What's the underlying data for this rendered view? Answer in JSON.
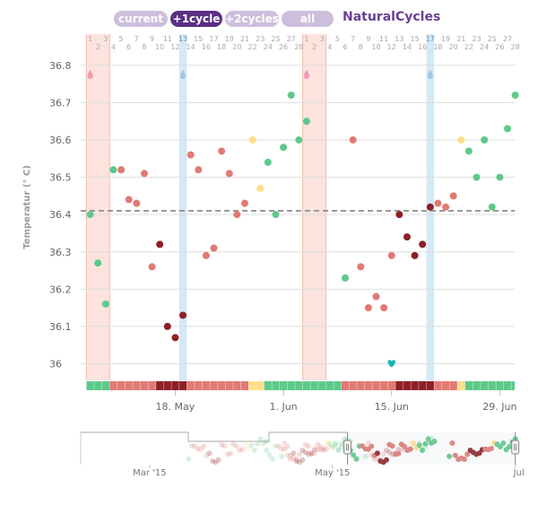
{
  "header": {
    "tabs": [
      {
        "label": "current",
        "active": false
      },
      {
        "label": "+1cycle",
        "active": true
      },
      {
        "label": "+2cycles",
        "active": false
      },
      {
        "label": "all",
        "active": false
      }
    ],
    "brand": "NaturalCycles"
  },
  "colors": {
    "green": "#5ec98a",
    "red": "#e07a73",
    "darkred": "#8e1f27",
    "yellow": "#ffe08a",
    "period_band": "#fde3de",
    "ovulation_band": "#d5e8f6",
    "marker_teal": "#1ab3b8",
    "marker_pink": "#f09bb3",
    "marker_blue": "#9ec9ea",
    "coverline": "#999999",
    "grid": "#dddddd"
  },
  "chart_data": [
    {
      "type": "scatter",
      "ylabel": "Temperatur (° C)",
      "ylim": [
        35.97,
        36.85
      ],
      "yticks": [
        36,
        36.1,
        36.2,
        36.3,
        36.4,
        36.5,
        36.6,
        36.7,
        36.8
      ],
      "x_range": [
        "2015-05-06",
        "2015-06-30"
      ],
      "date_ticks": [
        {
          "date": "2015-05-18",
          "label": "18. May"
        },
        {
          "date": "2015-06-01",
          "label": "1. Jun"
        },
        {
          "date": "2015-06-15",
          "label": "15. Jun"
        },
        {
          "date": "2015-06-29",
          "label": "29. Jun"
        }
      ],
      "cycle_days": [
        {
          "start": "2015-05-07",
          "days": 28
        },
        {
          "start": "2015-06-04",
          "days": 28
        }
      ],
      "coverline": 36.41,
      "period_bands": [
        [
          "2015-05-07",
          "2015-05-09"
        ],
        [
          "2015-06-04",
          "2015-06-06"
        ]
      ],
      "ovulation_days": [
        "2015-05-19",
        "2015-06-20"
      ],
      "markers": [
        {
          "date": "2015-05-07",
          "kind": "pink-drop"
        },
        {
          "date": "2015-05-19",
          "kind": "blue-drop"
        },
        {
          "date": "2015-06-04",
          "kind": "pink-drop"
        },
        {
          "date": "2015-06-20",
          "kind": "blue-drop"
        },
        {
          "date": "2015-06-15",
          "y": 36.0,
          "kind": "teal-heart"
        }
      ],
      "points": [
        {
          "date": "2015-05-07",
          "value": 36.4,
          "status": "green"
        },
        {
          "date": "2015-05-08",
          "value": 36.27,
          "status": "green"
        },
        {
          "date": "2015-05-09",
          "value": 36.16,
          "status": "green"
        },
        {
          "date": "2015-05-10",
          "value": 36.52,
          "status": "green"
        },
        {
          "date": "2015-05-11",
          "value": 36.52,
          "status": "red"
        },
        {
          "date": "2015-05-12",
          "value": 36.44,
          "status": "red"
        },
        {
          "date": "2015-05-13",
          "value": 36.43,
          "status": "red"
        },
        {
          "date": "2015-05-14",
          "value": 36.51,
          "status": "red"
        },
        {
          "date": "2015-05-15",
          "value": 36.26,
          "status": "red"
        },
        {
          "date": "2015-05-16",
          "value": 36.32,
          "status": "darkred"
        },
        {
          "date": "2015-05-17",
          "value": 36.1,
          "status": "darkred"
        },
        {
          "date": "2015-05-18",
          "value": 36.07,
          "status": "darkred"
        },
        {
          "date": "2015-05-19",
          "value": 36.13,
          "status": "darkred"
        },
        {
          "date": "2015-05-20",
          "value": 36.56,
          "status": "red"
        },
        {
          "date": "2015-05-21",
          "value": 36.52,
          "status": "red"
        },
        {
          "date": "2015-05-22",
          "value": 36.29,
          "status": "red"
        },
        {
          "date": "2015-05-23",
          "value": 36.31,
          "status": "red"
        },
        {
          "date": "2015-05-24",
          "value": 36.57,
          "status": "red"
        },
        {
          "date": "2015-05-25",
          "value": 36.51,
          "status": "red"
        },
        {
          "date": "2015-05-26",
          "value": 36.4,
          "status": "red"
        },
        {
          "date": "2015-05-27",
          "value": 36.43,
          "status": "red"
        },
        {
          "date": "2015-05-28",
          "value": 36.6,
          "status": "yellow"
        },
        {
          "date": "2015-05-29",
          "value": 36.47,
          "status": "yellow"
        },
        {
          "date": "2015-05-30",
          "value": 36.54,
          "status": "green"
        },
        {
          "date": "2015-05-31",
          "value": 36.4,
          "status": "green"
        },
        {
          "date": "2015-06-01",
          "value": 36.58,
          "status": "green"
        },
        {
          "date": "2015-06-02",
          "value": 36.72,
          "status": "green"
        },
        {
          "date": "2015-06-03",
          "value": 36.6,
          "status": "green"
        },
        {
          "date": "2015-06-04",
          "value": 36.65,
          "status": "green"
        },
        {
          "date": "2015-06-09",
          "value": 36.23,
          "status": "green"
        },
        {
          "date": "2015-06-10",
          "value": 36.6,
          "status": "red"
        },
        {
          "date": "2015-06-11",
          "value": 36.26,
          "status": "red"
        },
        {
          "date": "2015-06-12",
          "value": 36.15,
          "status": "red"
        },
        {
          "date": "2015-06-13",
          "value": 36.18,
          "status": "red"
        },
        {
          "date": "2015-06-14",
          "value": 36.15,
          "status": "red"
        },
        {
          "date": "2015-06-15",
          "value": 36.29,
          "status": "red"
        },
        {
          "date": "2015-06-16",
          "value": 36.4,
          "status": "darkred"
        },
        {
          "date": "2015-06-17",
          "value": 36.34,
          "status": "darkred"
        },
        {
          "date": "2015-06-18",
          "value": 36.29,
          "status": "darkred"
        },
        {
          "date": "2015-06-19",
          "value": 36.32,
          "status": "darkred"
        },
        {
          "date": "2015-06-20",
          "value": 36.42,
          "status": "darkred"
        },
        {
          "date": "2015-06-21",
          "value": 36.43,
          "status": "red"
        },
        {
          "date": "2015-06-22",
          "value": 36.42,
          "status": "red"
        },
        {
          "date": "2015-06-23",
          "value": 36.45,
          "status": "red"
        },
        {
          "date": "2015-06-24",
          "value": 36.6,
          "status": "yellow"
        },
        {
          "date": "2015-06-25",
          "value": 36.57,
          "status": "green"
        },
        {
          "date": "2015-06-26",
          "value": 36.5,
          "status": "green"
        },
        {
          "date": "2015-06-27",
          "value": 36.6,
          "status": "green"
        },
        {
          "date": "2015-06-28",
          "value": 36.42,
          "status": "green"
        },
        {
          "date": "2015-06-29",
          "value": 36.5,
          "status": "green"
        },
        {
          "date": "2015-06-30",
          "value": 36.63,
          "status": "green"
        },
        {
          "date": "2015-07-01",
          "value": 36.72,
          "status": "green"
        }
      ],
      "day_status_bar": [
        {
          "from": "2015-05-07",
          "to": "2015-05-09",
          "status": "green"
        },
        {
          "from": "2015-05-10",
          "to": "2015-05-15",
          "status": "red"
        },
        {
          "from": "2015-05-16",
          "to": "2015-05-19",
          "status": "darkred"
        },
        {
          "from": "2015-05-20",
          "to": "2015-05-27",
          "status": "red"
        },
        {
          "from": "2015-05-28",
          "to": "2015-05-29",
          "status": "yellow"
        },
        {
          "from": "2015-05-30",
          "to": "2015-06-08",
          "status": "green"
        },
        {
          "from": "2015-06-09",
          "to": "2015-06-15",
          "status": "red"
        },
        {
          "from": "2015-06-16",
          "to": "2015-06-20",
          "status": "darkred"
        },
        {
          "from": "2015-06-21",
          "to": "2015-06-23",
          "status": "red"
        },
        {
          "from": "2015-06-24",
          "to": "2015-06-24",
          "status": "yellow"
        },
        {
          "from": "2015-06-25",
          "to": "2015-07-01",
          "status": "green"
        }
      ]
    },
    {
      "type": "scatter",
      "role": "navigator",
      "x_range": [
        "2015-02-06",
        "2015-07-02"
      ],
      "date_ticks": [
        {
          "date": "2015-03-01",
          "label": "Mar '15"
        },
        {
          "date": "2015-05-01",
          "label": "May '15"
        },
        {
          "date": "2015-07-01",
          "label": "Jul"
        }
      ],
      "selected_range": [
        "2015-05-06",
        "2015-07-01"
      ]
    }
  ]
}
